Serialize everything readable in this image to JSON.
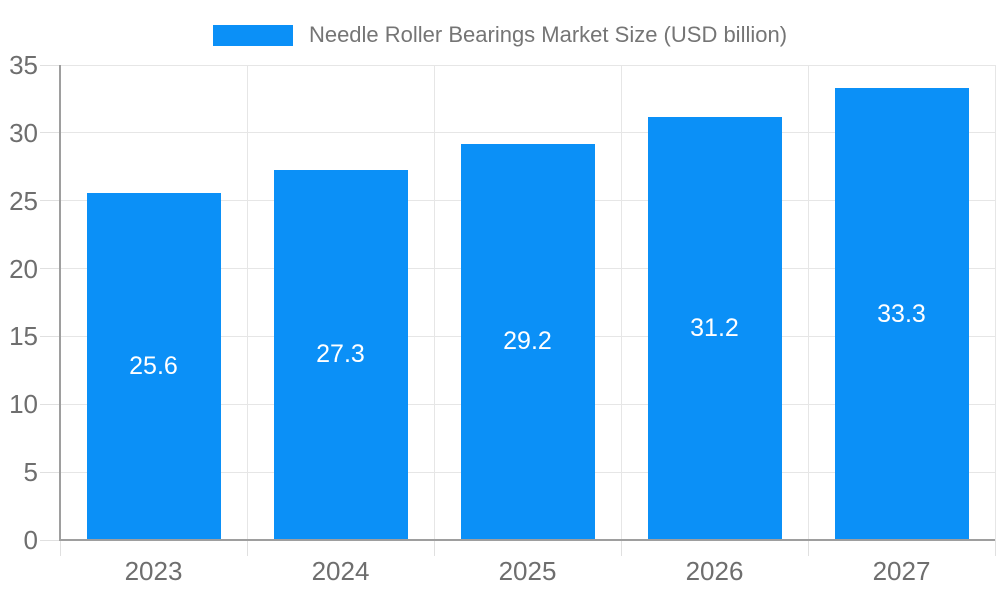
{
  "chart_data": {
    "type": "bar",
    "title": "Needle Roller Bearings Market Size (USD billion)",
    "legend_label": "Needle Roller Bearings Market Size (USD billion)",
    "legend_position": "top",
    "categories": [
      "2023",
      "2024",
      "2025",
      "2026",
      "2027"
    ],
    "values": [
      25.6,
      27.3,
      29.2,
      31.2,
      33.3
    ],
    "value_labels": [
      "25.6",
      "27.3",
      "29.2",
      "31.2",
      "33.3"
    ],
    "xlabel": "",
    "ylabel": "",
    "ylim": [
      0,
      35
    ],
    "ytick_step": 5,
    "yticks": [
      0,
      5,
      10,
      15,
      20,
      25,
      30,
      35
    ],
    "ytick_labels": [
      "0",
      "5",
      "10",
      "15",
      "20",
      "25",
      "30",
      "35"
    ],
    "grid": "on",
    "colors": {
      "bar": "#0b90f7",
      "value_label": "#ffffff",
      "grid_line": "#e6e6e6",
      "tick_line": "#e0e0e0",
      "axis_line": "#9e9e9e",
      "axis_text": "#6e6e6e",
      "legend_text": "#757575",
      "background": "#ffffff"
    }
  }
}
